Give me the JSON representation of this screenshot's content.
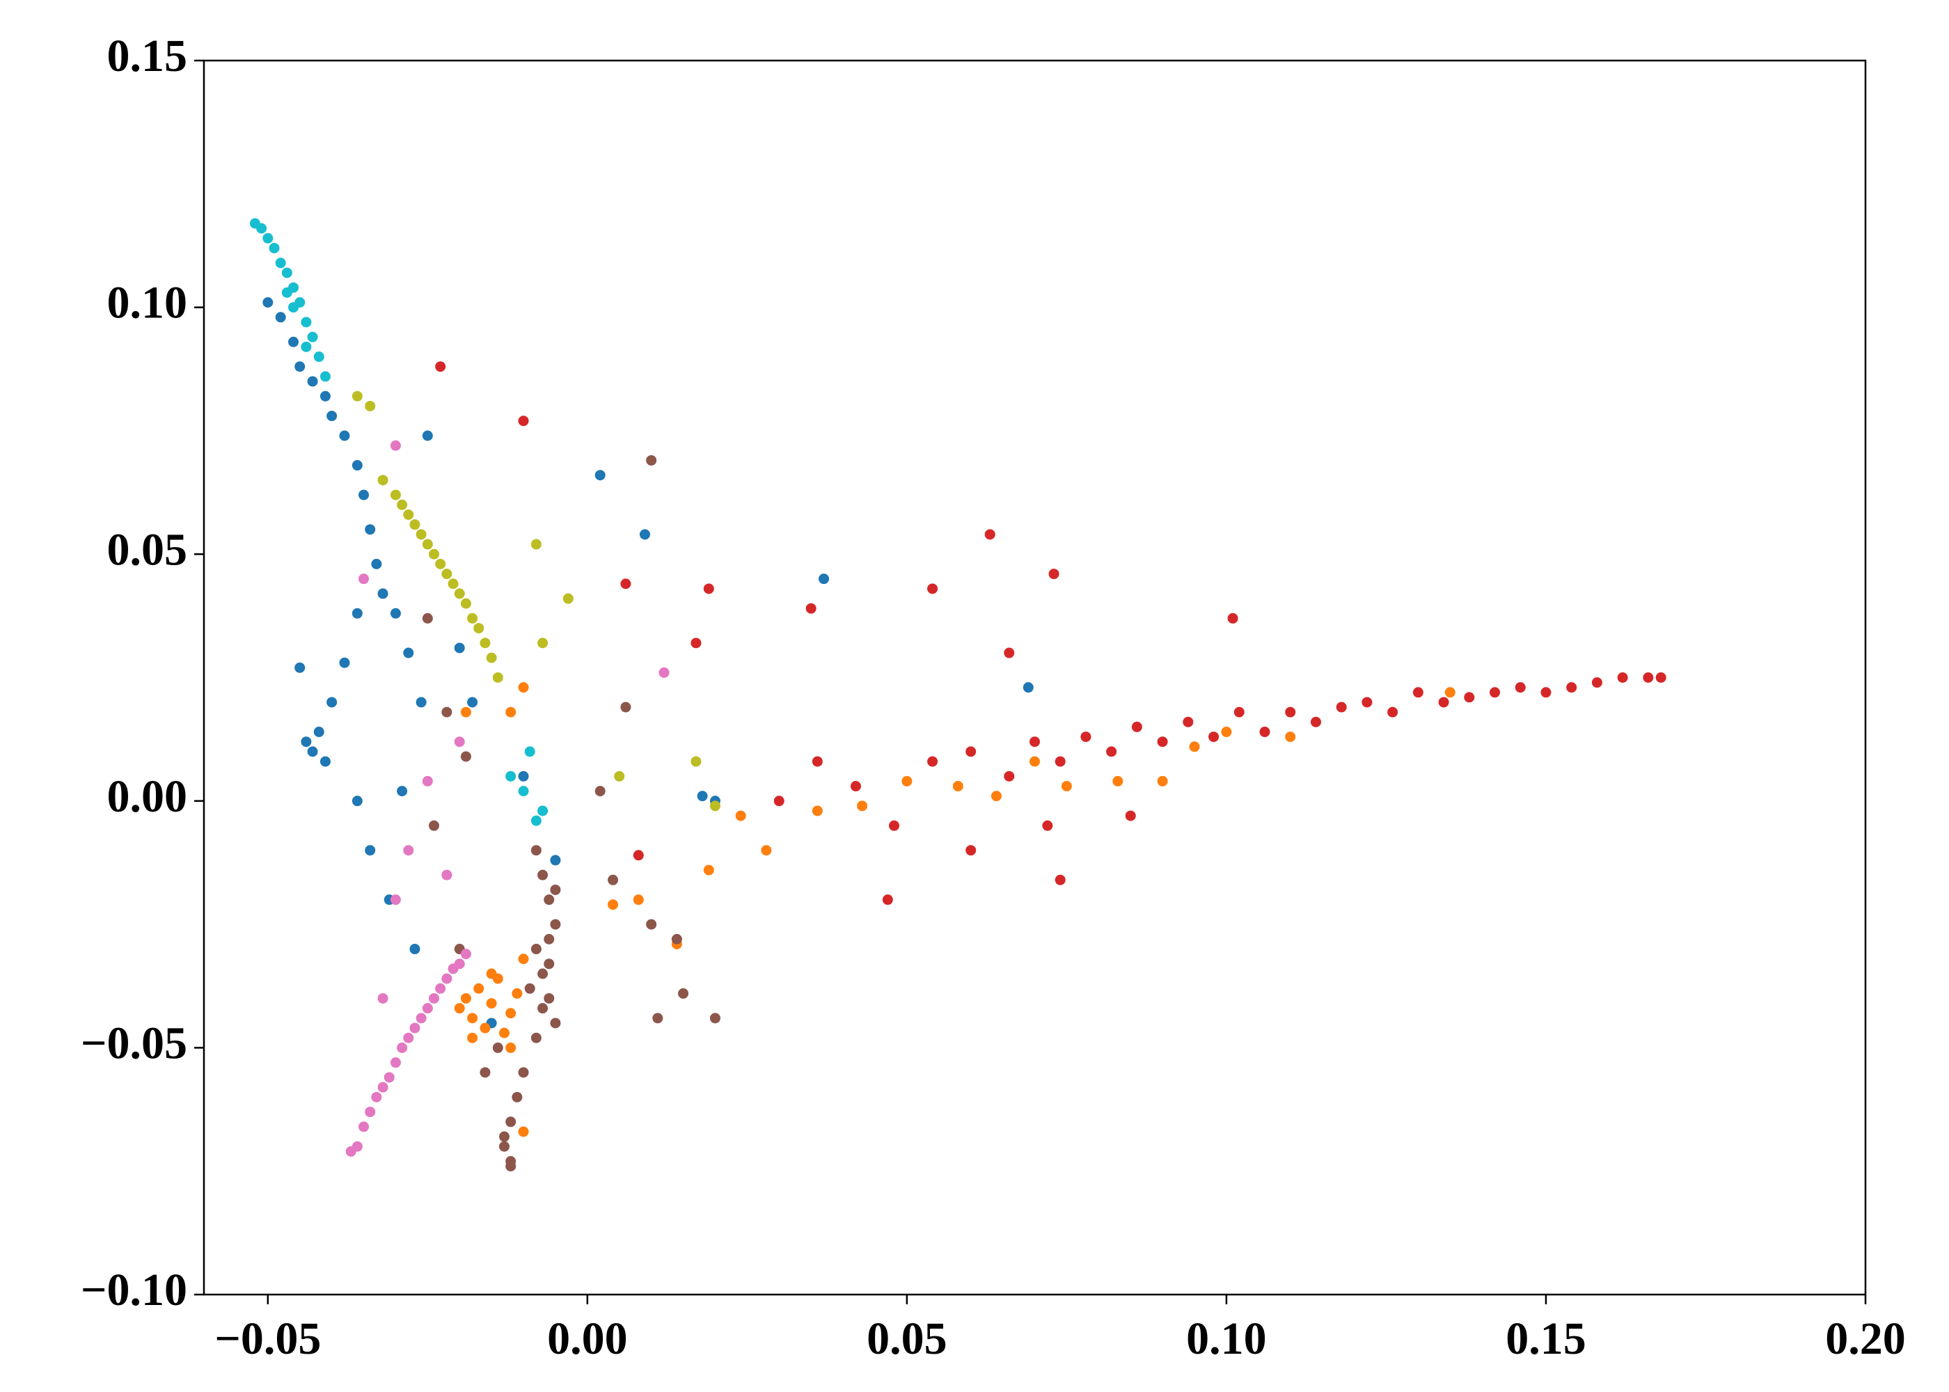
{
  "chart_data": {
    "type": "scatter",
    "xlim": [
      -0.06,
      0.2
    ],
    "ylim": [
      -0.1,
      0.15
    ],
    "xticks": [
      {
        "value": -0.05,
        "label": "−0.05"
      },
      {
        "value": 0,
        "label": "0.00"
      },
      0.05,
      {
        "value": 0.1,
        "label": "0.10"
      },
      0.15,
      {
        "value": 0.2,
        "label": "0.20"
      }
    ],
    "yticks": [
      {
        "value": -0.1,
        "label": "−0.10"
      },
      {
        "value": -0.05,
        "label": "−0.05"
      },
      {
        "value": 0,
        "label": "0.00"
      },
      0.05,
      {
        "value": 0.1,
        "label": "0.10"
      },
      0.15
    ],
    "grid": false,
    "series": [
      {
        "color": "#1f77b4",
        "x": [
          -0.05,
          -0.048,
          -0.046,
          -0.045,
          -0.043,
          -0.041,
          -0.04,
          -0.038,
          -0.036,
          -0.035,
          -0.034,
          -0.033,
          -0.032,
          -0.03,
          -0.028,
          -0.044,
          -0.043,
          -0.042,
          -0.041,
          -0.045,
          -0.04,
          -0.038,
          -0.036,
          -0.034,
          -0.031,
          -0.029,
          -0.027,
          -0.025,
          -0.02,
          -0.018,
          -0.015,
          -0.01,
          -0.005,
          0.002,
          0.009,
          0.018,
          0.02,
          0.037,
          0.069,
          -0.026,
          -0.036
        ],
        "values": [
          0.101,
          0.098,
          0.093,
          0.088,
          0.085,
          0.082,
          0.078,
          0.074,
          0.068,
          0.062,
          0.055,
          0.048,
          0.042,
          0.038,
          0.03,
          0.012,
          0.01,
          0.014,
          0.008,
          0.027,
          0.02,
          0.028,
          0.038,
          -0.01,
          -0.02,
          0.002,
          -0.03,
          0.074,
          0.031,
          0.02,
          -0.045,
          0.005,
          -0.012,
          0.066,
          0.054,
          0.001,
          0.0,
          0.045,
          0.023,
          0.02,
          0.0
        ]
      },
      {
        "color": "#ff7f0e",
        "x": [
          -0.02,
          -0.019,
          -0.018,
          -0.017,
          -0.016,
          -0.015,
          -0.014,
          -0.013,
          -0.012,
          -0.011,
          -0.01,
          -0.018,
          -0.015,
          -0.012,
          -0.01,
          0.004,
          0.008,
          0.014,
          0.019,
          0.024,
          0.028,
          0.036,
          0.043,
          0.05,
          0.058,
          0.064,
          0.07,
          0.075,
          0.083,
          0.09,
          0.095,
          0.1,
          0.11,
          0.135,
          -0.01,
          -0.012,
          -0.019
        ],
        "values": [
          -0.042,
          -0.04,
          -0.044,
          -0.038,
          -0.046,
          -0.041,
          -0.036,
          -0.047,
          -0.043,
          -0.039,
          -0.032,
          -0.048,
          -0.035,
          -0.05,
          -0.067,
          -0.021,
          -0.02,
          -0.029,
          -0.014,
          -0.003,
          -0.01,
          -0.002,
          -0.001,
          0.004,
          0.003,
          0.001,
          0.008,
          0.003,
          0.004,
          0.004,
          0.011,
          0.014,
          0.013,
          0.022,
          0.023,
          0.018,
          0.018
        ]
      },
      {
        "color": "#d62728",
        "x": [
          0.03,
          0.036,
          0.042,
          0.048,
          0.054,
          0.06,
          0.066,
          0.07,
          0.074,
          0.078,
          0.082,
          0.086,
          0.09,
          0.094,
          0.098,
          0.102,
          0.106,
          0.11,
          0.114,
          0.118,
          0.122,
          0.126,
          0.13,
          0.134,
          0.138,
          0.142,
          0.146,
          0.15,
          0.154,
          0.158,
          0.162,
          0.166,
          0.168,
          0.06,
          0.072,
          0.074,
          0.047,
          0.085,
          0.101,
          0.063,
          0.073,
          0.054,
          0.035,
          0.017,
          -0.023,
          -0.01,
          0.006,
          0.008,
          0.019,
          0.066
        ],
        "values": [
          0.0,
          0.008,
          0.003,
          -0.005,
          0.008,
          0.01,
          0.005,
          0.012,
          0.008,
          0.013,
          0.01,
          0.015,
          0.012,
          0.016,
          0.013,
          0.018,
          0.014,
          0.018,
          0.016,
          0.019,
          0.02,
          0.018,
          0.022,
          0.02,
          0.021,
          0.022,
          0.023,
          0.022,
          0.023,
          0.024,
          0.025,
          0.025,
          0.025,
          -0.01,
          -0.005,
          -0.016,
          -0.02,
          -0.003,
          0.037,
          0.054,
          0.046,
          0.043,
          0.039,
          0.032,
          0.088,
          0.077,
          0.044,
          -0.011,
          0.043,
          0.03
        ]
      },
      {
        "color": "#8c564b",
        "x": [
          -0.008,
          -0.007,
          -0.006,
          -0.005,
          -0.008,
          -0.007,
          -0.006,
          -0.005,
          -0.009,
          -0.006,
          -0.007,
          -0.005,
          -0.008,
          -0.006,
          -0.01,
          -0.011,
          -0.012,
          -0.013,
          -0.012,
          -0.013,
          -0.012,
          -0.014,
          -0.016,
          -0.02,
          -0.024,
          -0.022,
          0.002,
          0.006,
          0.01,
          0.011,
          0.015,
          0.02,
          0.01,
          -0.025,
          -0.019,
          0.004,
          0.014
        ],
        "values": [
          -0.01,
          -0.015,
          -0.02,
          -0.025,
          -0.03,
          -0.035,
          -0.04,
          -0.045,
          -0.038,
          -0.028,
          -0.042,
          -0.018,
          -0.048,
          -0.033,
          -0.055,
          -0.06,
          -0.065,
          -0.07,
          -0.073,
          -0.068,
          -0.074,
          -0.05,
          -0.055,
          -0.03,
          -0.005,
          0.018,
          0.002,
          0.019,
          0.069,
          -0.044,
          -0.039,
          -0.044,
          -0.025,
          0.037,
          0.009,
          -0.016,
          -0.028
        ]
      },
      {
        "color": "#e377c2",
        "x": [
          -0.036,
          -0.035,
          -0.034,
          -0.033,
          -0.032,
          -0.031,
          -0.03,
          -0.029,
          -0.028,
          -0.027,
          -0.026,
          -0.025,
          -0.024,
          -0.023,
          -0.022,
          -0.021,
          -0.02,
          -0.019,
          -0.032,
          -0.03,
          -0.028,
          -0.025,
          -0.022,
          -0.035,
          -0.037,
          0.012,
          -0.03,
          -0.02
        ],
        "values": [
          -0.07,
          -0.066,
          -0.063,
          -0.06,
          -0.058,
          -0.056,
          -0.053,
          -0.05,
          -0.048,
          -0.046,
          -0.044,
          -0.042,
          -0.04,
          -0.038,
          -0.036,
          -0.034,
          -0.033,
          -0.031,
          -0.04,
          -0.02,
          -0.01,
          0.004,
          -0.015,
          0.045,
          -0.071,
          0.026,
          0.072,
          0.012
        ]
      },
      {
        "color": "#bcbd22",
        "x": [
          -0.032,
          -0.03,
          -0.029,
          -0.028,
          -0.027,
          -0.026,
          -0.025,
          -0.024,
          -0.023,
          -0.022,
          -0.021,
          -0.02,
          -0.019,
          -0.018,
          -0.017,
          -0.016,
          -0.015,
          -0.014,
          -0.034,
          -0.036,
          -0.008,
          -0.007,
          -0.003,
          0.005,
          0.017,
          0.02
        ],
        "values": [
          0.065,
          0.062,
          0.06,
          0.058,
          0.056,
          0.054,
          0.052,
          0.05,
          0.048,
          0.046,
          0.044,
          0.042,
          0.04,
          0.037,
          0.035,
          0.032,
          0.029,
          0.025,
          0.08,
          0.082,
          0.052,
          0.032,
          0.041,
          0.005,
          0.008,
          -0.001
        ]
      },
      {
        "color": "#17becf",
        "x": [
          -0.052,
          -0.051,
          -0.05,
          -0.049,
          -0.048,
          -0.047,
          -0.046,
          -0.045,
          -0.046,
          -0.044,
          -0.043,
          -0.042,
          -0.041,
          -0.044,
          -0.047,
          -0.01,
          -0.008,
          -0.009,
          -0.007,
          -0.012
        ],
        "values": [
          0.117,
          0.116,
          0.114,
          0.112,
          0.109,
          0.107,
          0.104,
          0.101,
          0.1,
          0.097,
          0.094,
          0.09,
          0.086,
          0.092,
          0.103,
          0.002,
          -0.004,
          0.01,
          -0.002,
          0.005
        ]
      }
    ]
  }
}
